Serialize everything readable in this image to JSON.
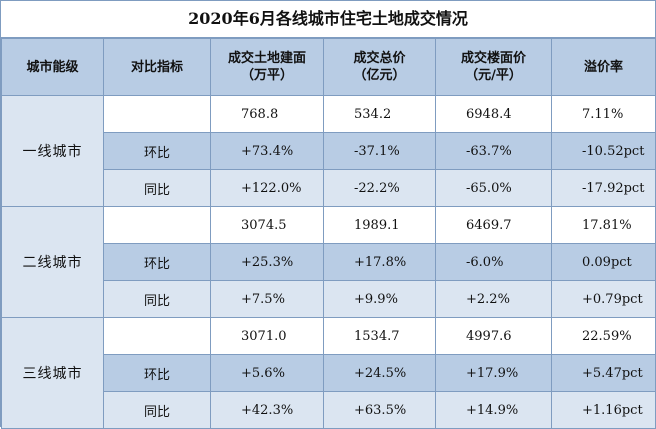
{
  "title": "2020年6月各线城市住宅土地成交情况",
  "headers": [
    "城市能级",
    "对比指标",
    "成交土地建面\n（万平）",
    "成交总价\n（亿元）",
    "成交楼面价\n（元/平）",
    "溢价率"
  ],
  "groups": [
    {
      "level": "一线城市",
      "rows": [
        {
          "metric": "",
          "values": [
            "768.8",
            "534.2",
            "6948.4",
            "7.11%"
          ]
        },
        {
          "metric": "环比",
          "values": [
            "+73.4%",
            "-37.1%",
            "-63.7%",
            "-10.52pct"
          ]
        },
        {
          "metric": "同比",
          "values": [
            "+122.0%",
            "-22.2%",
            "-65.0%",
            "-17.92pct"
          ]
        }
      ]
    },
    {
      "level": "二线城市",
      "rows": [
        {
          "metric": "",
          "values": [
            "3074.5",
            "1989.1",
            "6469.7",
            "17.81%"
          ]
        },
        {
          "metric": "环比",
          "values": [
            "+25.3%",
            "+17.8%",
            "-6.0%",
            "0.09pct"
          ]
        },
        {
          "metric": "同比",
          "values": [
            "+7.5%",
            "+9.9%",
            "+2.2%",
            "+0.79pct"
          ]
        }
      ]
    },
    {
      "level": "三线城市",
      "rows": [
        {
          "metric": "",
          "values": [
            "3071.0",
            "1534.7",
            "4997.6",
            "22.59%"
          ]
        },
        {
          "metric": "环比",
          "values": [
            "+5.6%",
            "+24.5%",
            "+17.9%",
            "+5.47pct"
          ]
        },
        {
          "metric": "同比",
          "values": [
            "+42.3%",
            "+63.5%",
            "+14.9%",
            "+1.16pct"
          ]
        }
      ]
    }
  ]
}
